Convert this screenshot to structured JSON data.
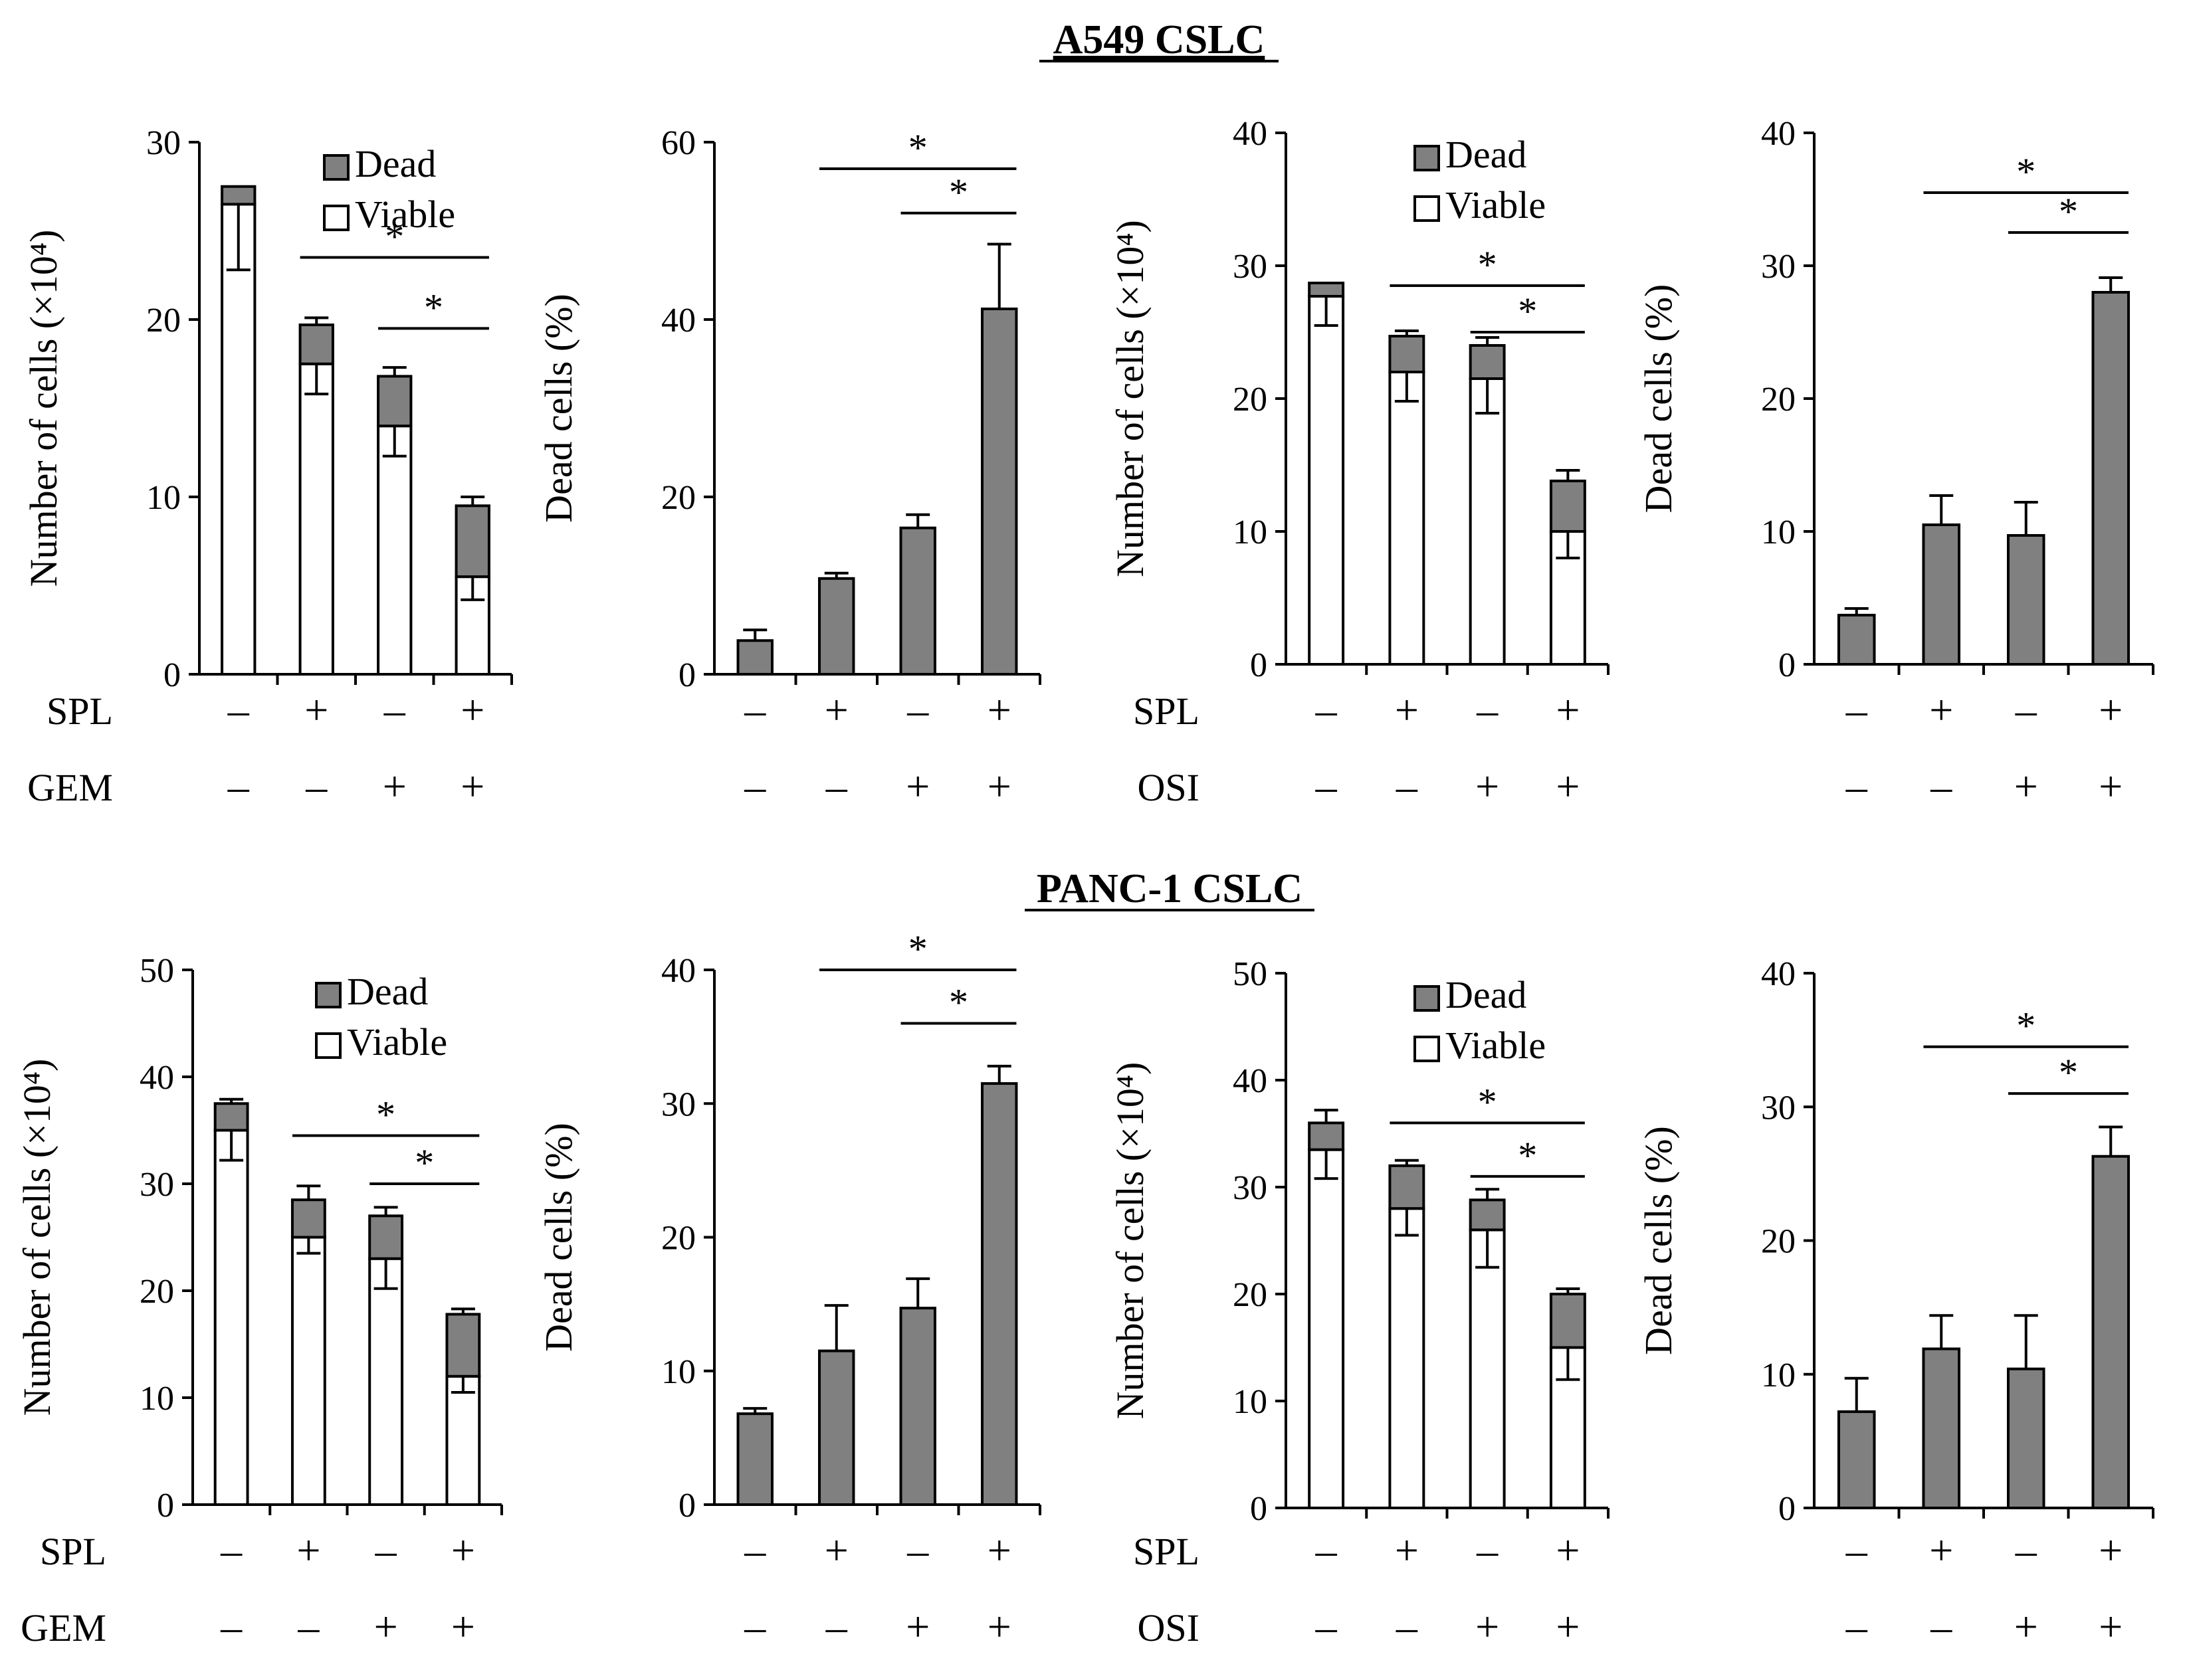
{
  "colors": {
    "dead": "#808080",
    "viable": "#ffffff",
    "stroke": "#000000"
  },
  "row_titles": [
    "A549 CSLC",
    "PANC-1 CSLC"
  ],
  "sign_symbols": {
    "plus": "+",
    "minus": "–"
  },
  "chart_data": [
    {
      "type": "bar",
      "stacked": true,
      "row": 0,
      "ylabel": "Number of cells (×10⁴)",
      "ylim": [
        0,
        30
      ],
      "yticks": [
        0,
        10,
        20,
        30
      ],
      "legend": [
        "Dead",
        "Viable"
      ],
      "factors": [
        {
          "name": "SPL",
          "signs": [
            "-",
            "+",
            "-",
            "+"
          ]
        },
        {
          "name": "GEM",
          "signs": [
            "-",
            "-",
            "+",
            "+"
          ]
        }
      ],
      "series": [
        {
          "name": "Viable",
          "values": [
            26.5,
            17.5,
            14.0,
            5.5
          ],
          "error": [
            3.7,
            1.7,
            1.7,
            1.3
          ]
        },
        {
          "name": "Dead",
          "values": [
            1.0,
            2.2,
            2.8,
            4.0
          ],
          "error": [
            0,
            0.4,
            0.5,
            0.5
          ]
        }
      ],
      "significance": [
        {
          "from": 1,
          "to": 3,
          "y": 23.5,
          "label": "*"
        },
        {
          "from": 2,
          "to": 3,
          "y": 19.5,
          "label": "*"
        }
      ]
    },
    {
      "type": "bar",
      "stacked": false,
      "row": 0,
      "ylabel": "Dead cells (%)",
      "ylim": [
        0,
        60
      ],
      "yticks": [
        0,
        20,
        40,
        60
      ],
      "factors": [
        {
          "name": "",
          "signs": [
            "-",
            "+",
            "-",
            "+"
          ]
        },
        {
          "name": "",
          "signs": [
            "-",
            "-",
            "+",
            "+"
          ]
        }
      ],
      "series": [
        {
          "name": "Dead",
          "values": [
            3.8,
            10.8,
            16.5,
            41.2
          ],
          "error": [
            1.2,
            0.6,
            1.5,
            7.3
          ]
        }
      ],
      "significance": [
        {
          "from": 1,
          "to": 3,
          "y": 57.0,
          "label": "*"
        },
        {
          "from": 2,
          "to": 3,
          "y": 52.0,
          "label": "*"
        }
      ]
    },
    {
      "type": "bar",
      "stacked": true,
      "row": 0,
      "ylabel": "Number of cells (×10⁴)",
      "ylim": [
        0,
        40
      ],
      "yticks": [
        0,
        10,
        20,
        30,
        40
      ],
      "legend": [
        "Dead",
        "Viable"
      ],
      "factors": [
        {
          "name": "SPL",
          "signs": [
            "-",
            "+",
            "-",
            "+"
          ]
        },
        {
          "name": "OSI",
          "signs": [
            "-",
            "-",
            "+",
            "+"
          ]
        }
      ],
      "series": [
        {
          "name": "Viable",
          "values": [
            27.7,
            22.0,
            21.5,
            10.0
          ],
          "error": [
            2.2,
            2.2,
            2.6,
            2.0
          ]
        },
        {
          "name": "Dead",
          "values": [
            1.0,
            2.7,
            2.5,
            3.8
          ],
          "error": [
            0,
            0.4,
            0.6,
            0.8
          ]
        }
      ],
      "significance": [
        {
          "from": 1,
          "to": 3,
          "y": 28.5,
          "label": "*"
        },
        {
          "from": 2,
          "to": 3,
          "y": 25.0,
          "label": "*"
        }
      ]
    },
    {
      "type": "bar",
      "stacked": false,
      "row": 0,
      "ylabel": "Dead cells (%)",
      "ylim": [
        0,
        40
      ],
      "yticks": [
        0,
        10,
        20,
        30,
        40
      ],
      "factors": [
        {
          "name": "",
          "signs": [
            "-",
            "+",
            "-",
            "+"
          ]
        },
        {
          "name": "",
          "signs": [
            "-",
            "-",
            "+",
            "+"
          ]
        }
      ],
      "series": [
        {
          "name": "Dead",
          "values": [
            3.7,
            10.5,
            9.7,
            28.0
          ],
          "error": [
            0.5,
            2.2,
            2.5,
            1.1
          ]
        }
      ],
      "significance": [
        {
          "from": 1,
          "to": 3,
          "y": 35.5,
          "label": "*"
        },
        {
          "from": 2,
          "to": 3,
          "y": 32.5,
          "label": "*"
        }
      ]
    },
    {
      "type": "bar",
      "stacked": true,
      "row": 1,
      "ylabel": "Number of cells (×10⁴)",
      "ylim": [
        0,
        50
      ],
      "yticks": [
        0,
        10,
        20,
        30,
        40,
        50
      ],
      "legend": [
        "Dead",
        "Viable"
      ],
      "factors": [
        {
          "name": "SPL",
          "signs": [
            "-",
            "+",
            "-",
            "+"
          ]
        },
        {
          "name": "GEM",
          "signs": [
            "-",
            "-",
            "+",
            "+"
          ]
        }
      ],
      "series": [
        {
          "name": "Viable",
          "values": [
            35.0,
            25.0,
            23.0,
            12.0
          ],
          "error": [
            2.8,
            1.5,
            2.8,
            1.5
          ]
        },
        {
          "name": "Dead",
          "values": [
            2.5,
            3.5,
            4.0,
            5.8
          ],
          "error": [
            0.4,
            1.3,
            0.8,
            0.5
          ]
        }
      ],
      "significance": [
        {
          "from": 1,
          "to": 3,
          "y": 34.5,
          "label": "*"
        },
        {
          "from": 2,
          "to": 3,
          "y": 30.0,
          "label": "*"
        }
      ]
    },
    {
      "type": "bar",
      "stacked": false,
      "row": 1,
      "ylabel": "Dead cells (%)",
      "ylim": [
        0,
        40
      ],
      "yticks": [
        0,
        10,
        20,
        30,
        40
      ],
      "factors": [
        {
          "name": "",
          "signs": [
            "-",
            "+",
            "-",
            "+"
          ]
        },
        {
          "name": "",
          "signs": [
            "-",
            "-",
            "+",
            "+"
          ]
        }
      ],
      "series": [
        {
          "name": "Dead",
          "values": [
            6.8,
            11.5,
            14.7,
            31.5
          ],
          "error": [
            0.4,
            3.4,
            2.2,
            1.3
          ]
        }
      ],
      "significance": [
        {
          "from": 1,
          "to": 3,
          "y": 40.0,
          "label": "*"
        },
        {
          "from": 2,
          "to": 3,
          "y": 36.0,
          "label": "*"
        }
      ]
    },
    {
      "type": "bar",
      "stacked": true,
      "row": 1,
      "ylabel": "Number of cells (×10⁴)",
      "ylim": [
        0,
        50
      ],
      "yticks": [
        0,
        10,
        20,
        30,
        40,
        50
      ],
      "legend": [
        "Dead",
        "Viable"
      ],
      "factors": [
        {
          "name": "SPL",
          "signs": [
            "-",
            "+",
            "-",
            "+"
          ]
        },
        {
          "name": "OSI",
          "signs": [
            "-",
            "-",
            "+",
            "+"
          ]
        }
      ],
      "series": [
        {
          "name": "Viable",
          "values": [
            33.5,
            28.0,
            26.0,
            15.0
          ],
          "error": [
            2.7,
            2.5,
            3.5,
            3.0
          ]
        },
        {
          "name": "Dead",
          "values": [
            2.5,
            4.0,
            2.8,
            5.0
          ],
          "error": [
            1.2,
            0.5,
            1.0,
            0.5
          ]
        }
      ],
      "significance": [
        {
          "from": 1,
          "to": 3,
          "y": 36.0,
          "label": "*"
        },
        {
          "from": 2,
          "to": 3,
          "y": 31.0,
          "label": "*"
        }
      ]
    },
    {
      "type": "bar",
      "stacked": false,
      "row": 1,
      "ylabel": "Dead cells (%)",
      "ylim": [
        0,
        40
      ],
      "yticks": [
        0,
        10,
        20,
        30,
        40
      ],
      "factors": [
        {
          "name": "",
          "signs": [
            "-",
            "+",
            "-",
            "+"
          ]
        },
        {
          "name": "",
          "signs": [
            "-",
            "-",
            "+",
            "+"
          ]
        }
      ],
      "series": [
        {
          "name": "Dead",
          "values": [
            7.2,
            11.9,
            10.4,
            26.3
          ],
          "error": [
            2.5,
            2.5,
            4.0,
            2.2
          ]
        }
      ],
      "significance": [
        {
          "from": 1,
          "to": 3,
          "y": 34.5,
          "label": "*"
        },
        {
          "from": 2,
          "to": 3,
          "y": 31.0,
          "label": "*"
        }
      ]
    }
  ]
}
